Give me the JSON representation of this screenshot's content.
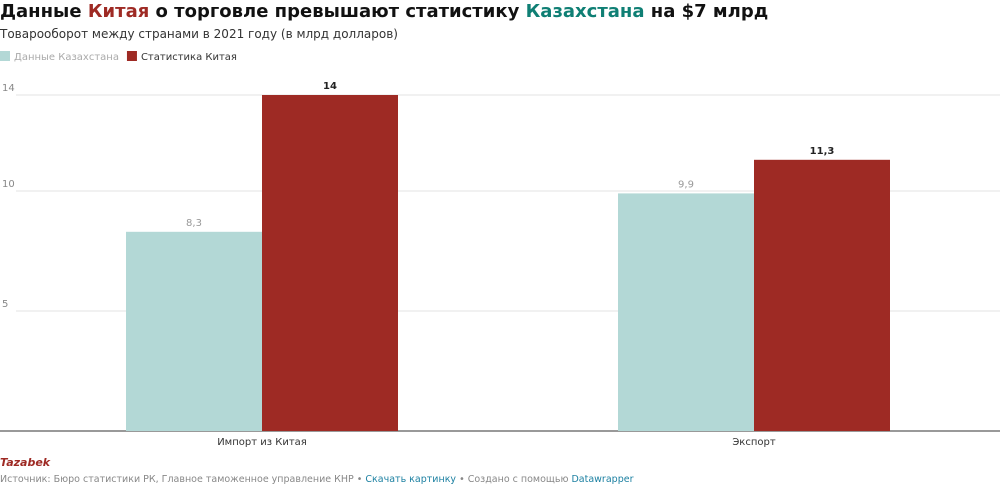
{
  "chart_data": {
    "type": "bar",
    "title": [
      {
        "text": "Данные "
      },
      {
        "text": "Китая",
        "color": "#9e2a24"
      },
      {
        "text": " о торговле превышают статистику "
      },
      {
        "text": "Казахстана",
        "color": "#0f7f74"
      },
      {
        "text": " на $7 млрд"
      }
    ],
    "subtitle": "Товарооборот между странами в 2021 году (в млрд долларов)",
    "categories": [
      "Импорт из Китая",
      "Экспорт"
    ],
    "series": [
      {
        "name": "Данные Казахстана",
        "color": "#b3d8d6",
        "values": [
          8.3,
          9.9
        ],
        "value_labels": [
          "8,3",
          "9,9"
        ]
      },
      {
        "name": "Статистика Китая",
        "color": "#9e2a24",
        "values": [
          14,
          11.3
        ],
        "value_labels": [
          "14",
          "11,3"
        ]
      }
    ],
    "ylim": [
      0,
      14
    ],
    "yticks": [
      5,
      10,
      14
    ],
    "grid": true,
    "footer": {
      "brand": "Tazabek",
      "source": "Источник: Бюро статистики РК, Главное таможенное управление КНР",
      "download": "Скачать картинку",
      "made_with": "Создано с помощью",
      "tool": "Datawrapper"
    }
  }
}
